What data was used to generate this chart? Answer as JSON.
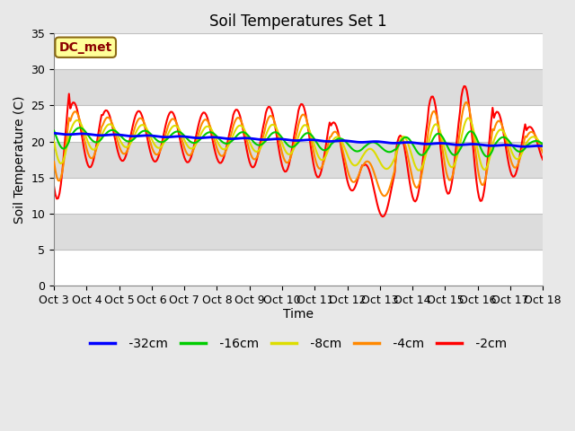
{
  "title": "Soil Temperatures Set 1",
  "xlabel": "Time",
  "ylabel": "Soil Temperature (C)",
  "ylim": [
    0,
    35
  ],
  "x_tick_labels": [
    "Oct 3",
    "Oct 4",
    "Oct 5",
    "Oct 6",
    "Oct 7",
    "Oct 8",
    "Oct 9",
    "Oct 10",
    "Oct 11",
    "Oct 12",
    "Oct 13",
    "Oct 14",
    "Oct 15",
    "Oct 16",
    "Oct 17",
    "Oct 18"
  ],
  "annotation_text": "DC_met",
  "annotation_color": "#8B0000",
  "annotation_bg": "#FFFF99",
  "annotation_border": "#8B6914",
  "fig_bg": "#E8E8E8",
  "plot_bg": "#F0F0F0",
  "band_colors": [
    "#FFFFFF",
    "#DCDCDC"
  ],
  "lines": {
    "-32cm": {
      "color": "#0000FF",
      "linewidth": 2.0
    },
    "-16cm": {
      "color": "#00CC00",
      "linewidth": 1.5
    },
    "-8cm": {
      "color": "#DDDD00",
      "linewidth": 1.5
    },
    "-4cm": {
      "color": "#FF8800",
      "linewidth": 1.5
    },
    "-2cm": {
      "color": "#FF0000",
      "linewidth": 1.5
    }
  },
  "yticks": [
    0,
    5,
    10,
    15,
    20,
    25,
    30,
    35
  ],
  "title_fontsize": 12,
  "axis_label_fontsize": 10,
  "tick_fontsize": 9,
  "legend_fontsize": 10
}
